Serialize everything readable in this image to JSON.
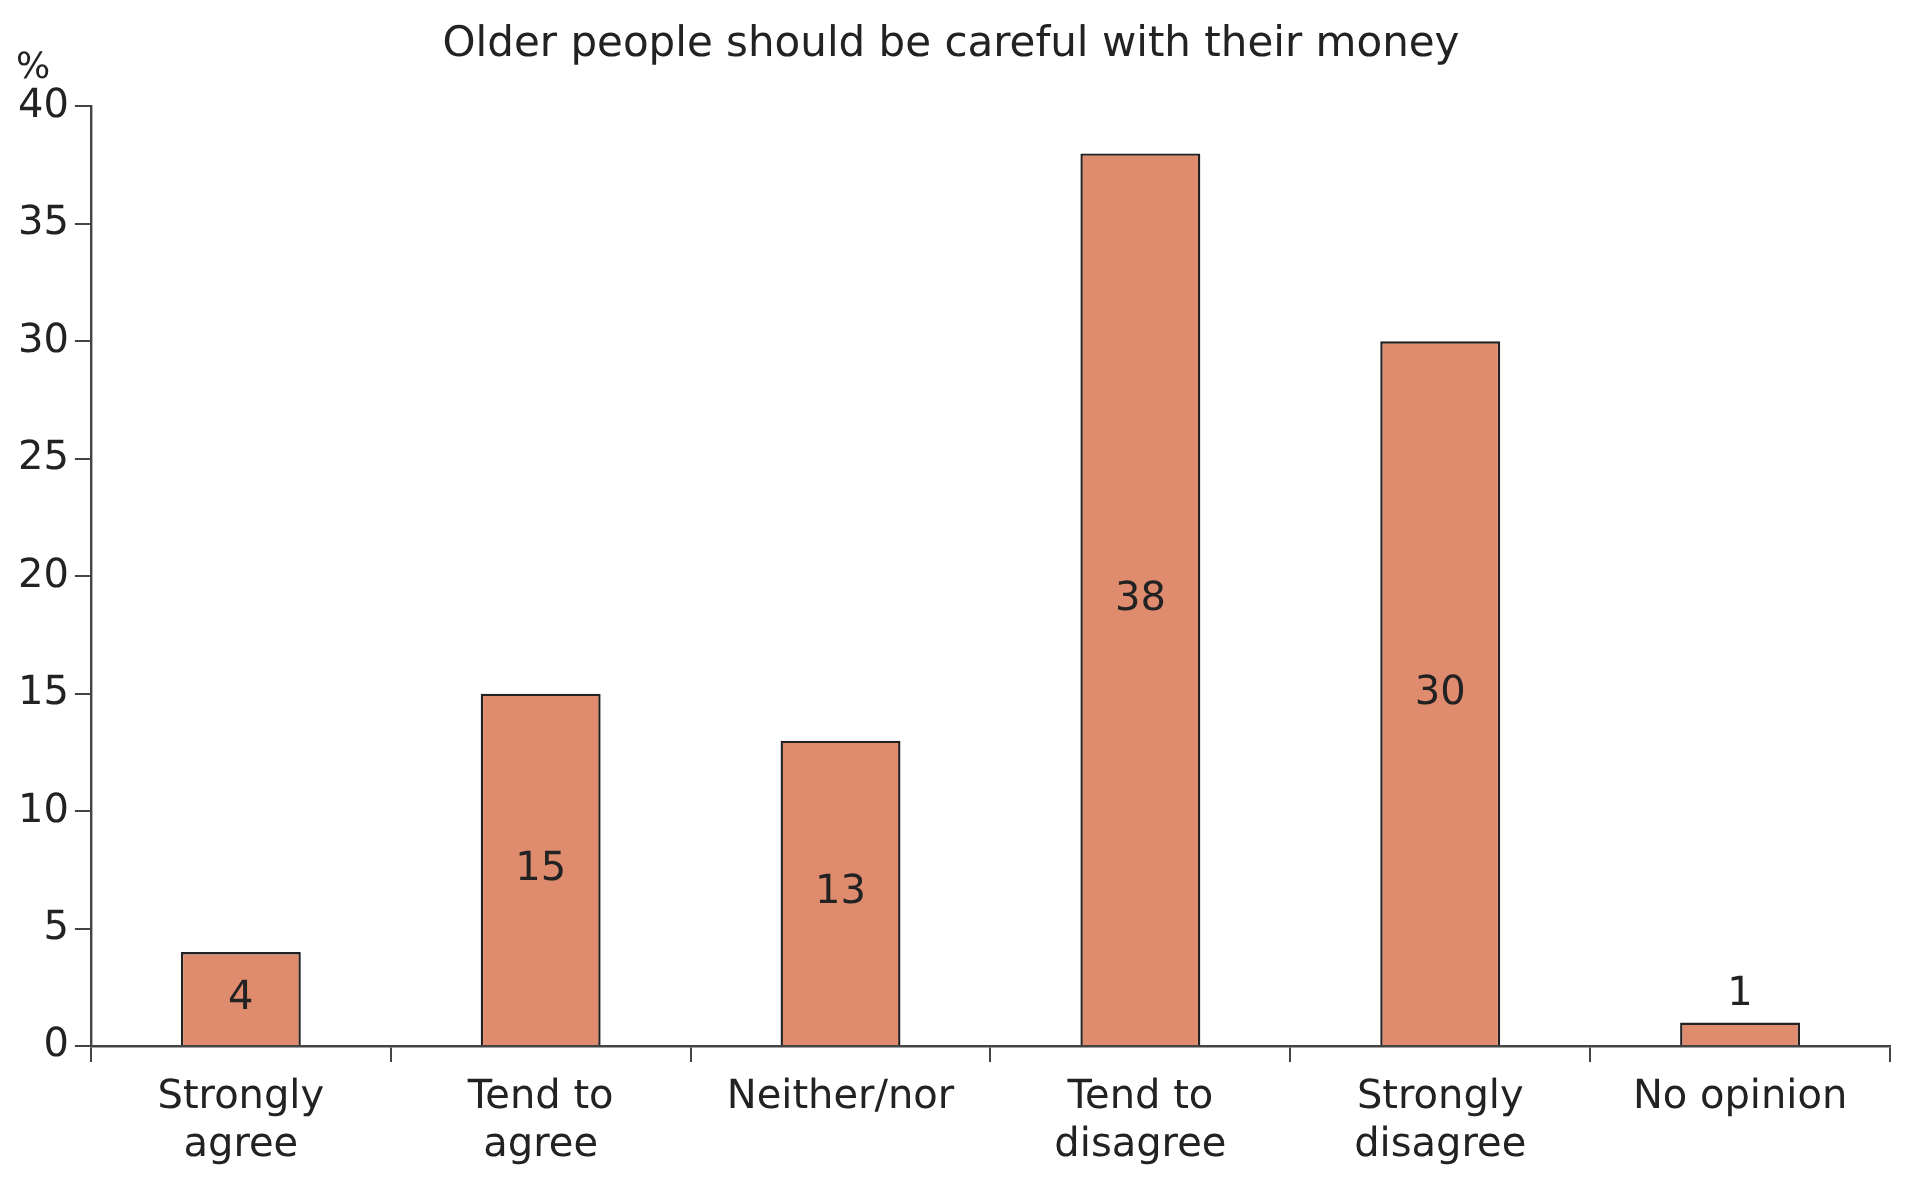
{
  "chart_data": {
    "type": "bar",
    "title": "Older people should be careful with their money",
    "ylabel": "%",
    "categories": [
      "Strongly agree",
      "Tend to agree",
      "Neither/nor",
      "Tend to disagree",
      "Strongly disagree",
      "No opinion"
    ],
    "values": [
      4,
      15,
      13,
      38,
      30,
      1
    ],
    "color": "#df8c6e",
    "ylim": [
      0,
      40
    ],
    "yticks": [
      0,
      5,
      10,
      15,
      20,
      25,
      30,
      35,
      40
    ],
    "grid": false,
    "data_labels": true
  }
}
